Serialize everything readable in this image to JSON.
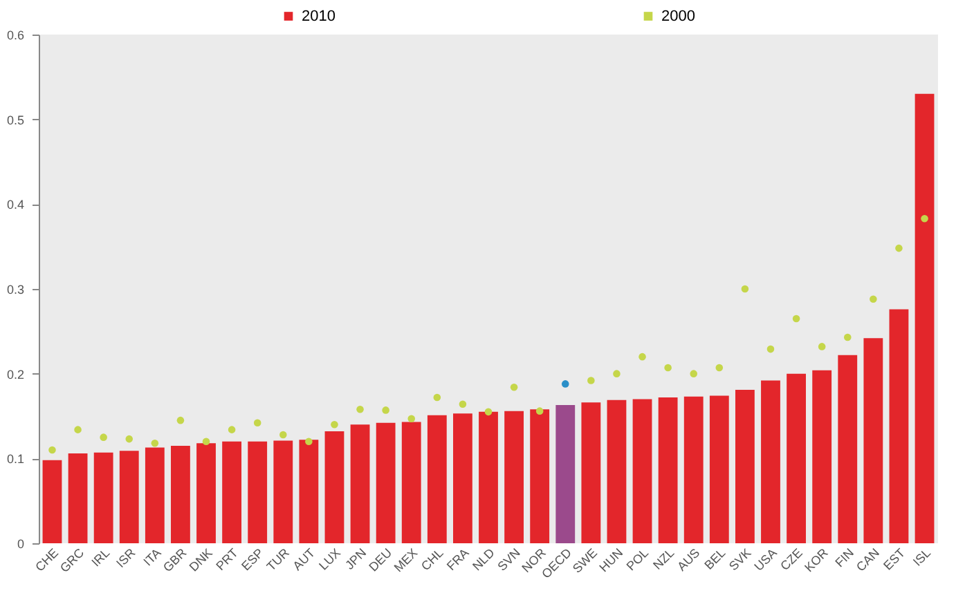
{
  "chart_data": {
    "type": "bar",
    "categories": [
      "CHE",
      "GRC",
      "IRL",
      "ISR",
      "ITA",
      "GBR",
      "DNK",
      "PRT",
      "ESP",
      "TUR",
      "AUT",
      "LUX",
      "JPN",
      "DEU",
      "MEX",
      "CHL",
      "FRA",
      "NLD",
      "SVN",
      "NOR",
      "OECD",
      "SWE",
      "HUN",
      "POL",
      "NZL",
      "AUS",
      "BEL",
      "SVK",
      "USA",
      "CZE",
      "KOR",
      "FIN",
      "CAN",
      "EST",
      "ISL"
    ],
    "series": [
      {
        "name": "2010",
        "color": "#e3262b",
        "colors": [
          "#e3262b",
          "#e3262b",
          "#e3262b",
          "#e3262b",
          "#e3262b",
          "#e3262b",
          "#e3262b",
          "#e3262b",
          "#e3262b",
          "#e3262b",
          "#e3262b",
          "#e3262b",
          "#e3262b",
          "#e3262b",
          "#e3262b",
          "#e3262b",
          "#e3262b",
          "#e3262b",
          "#e3262b",
          "#e3262b",
          "#9b4a8c",
          "#e3262b",
          "#e3262b",
          "#e3262b",
          "#e3262b",
          "#e3262b",
          "#e3262b",
          "#e3262b",
          "#e3262b",
          "#e3262b",
          "#e3262b",
          "#e3262b",
          "#e3262b",
          "#e3262b",
          "#e3262b"
        ],
        "values": [
          0.098,
          0.106,
          0.107,
          0.109,
          0.113,
          0.115,
          0.118,
          0.12,
          0.12,
          0.121,
          0.122,
          0.132,
          0.14,
          0.142,
          0.143,
          0.151,
          0.153,
          0.155,
          0.156,
          0.158,
          0.163,
          0.166,
          0.169,
          0.17,
          0.172,
          0.173,
          0.174,
          0.181,
          0.192,
          0.2,
          0.204,
          0.222,
          0.242,
          0.276,
          0.53
        ]
      },
      {
        "name": "2000",
        "type": "scatter",
        "color": "#c5d64a",
        "colors": [
          "#c5d64a",
          "#c5d64a",
          "#c5d64a",
          "#c5d64a",
          "#c5d64a",
          "#c5d64a",
          "#c5d64a",
          "#c5d64a",
          "#c5d64a",
          "#c5d64a",
          "#c5d64a",
          "#c5d64a",
          "#c5d64a",
          "#c5d64a",
          "#c5d64a",
          "#c5d64a",
          "#c5d64a",
          "#c5d64a",
          "#c5d64a",
          "#c5d64a",
          "#2a8fc8",
          "#c5d64a",
          "#c5d64a",
          "#c5d64a",
          "#c5d64a",
          "#c5d64a",
          "#c5d64a",
          "#c5d64a",
          "#c5d64a",
          "#c5d64a",
          "#c5d64a",
          "#c5d64a",
          "#c5d64a",
          "#c5d64a",
          "#c5d64a"
        ],
        "values": [
          0.11,
          0.134,
          0.125,
          0.123,
          0.118,
          0.145,
          0.12,
          0.134,
          0.142,
          0.128,
          0.12,
          0.14,
          0.158,
          0.157,
          0.147,
          0.172,
          0.164,
          0.155,
          0.184,
          0.156,
          0.188,
          0.192,
          0.2,
          0.22,
          0.207,
          0.2,
          0.207,
          0.3,
          0.229,
          0.265,
          0.232,
          0.243,
          0.288,
          0.348,
          0.383
        ]
      }
    ],
    "ylim": [
      0,
      0.6
    ],
    "yticks": [
      0,
      0.1,
      0.2,
      0.3,
      0.4,
      0.5,
      0.6
    ],
    "grid": false,
    "legend": "top",
    "marker": "circle"
  }
}
